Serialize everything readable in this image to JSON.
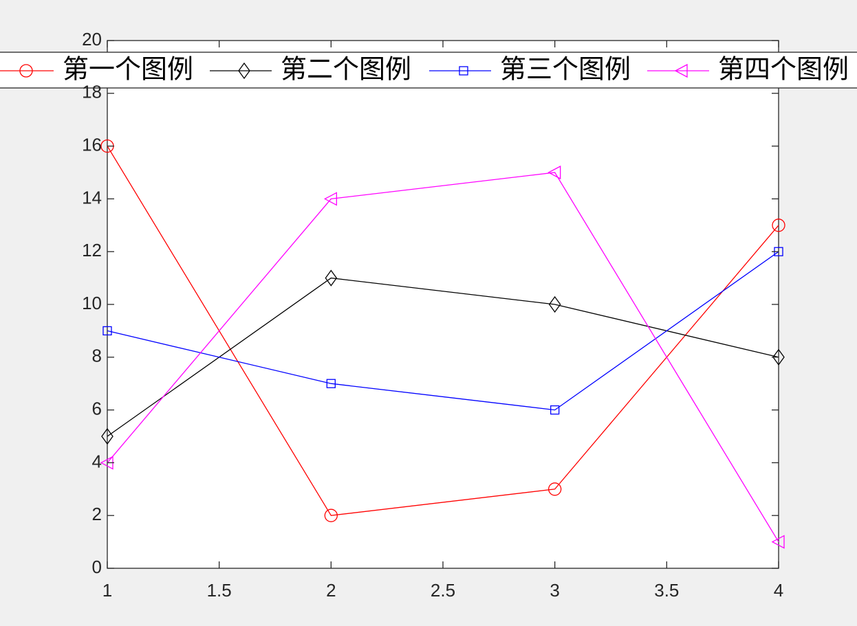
{
  "chart_data": {
    "type": "line",
    "x": [
      1,
      2,
      3,
      4
    ],
    "series": [
      {
        "name": "第一个图例",
        "color": "#ff0000",
        "marker": "circle",
        "values": [
          16,
          2,
          3,
          13
        ]
      },
      {
        "name": "第二个图例",
        "color": "#000000",
        "marker": "diamond",
        "values": [
          5,
          11,
          10,
          8
        ]
      },
      {
        "name": "第三个图例",
        "color": "#0000ff",
        "marker": "square",
        "values": [
          9,
          7,
          6,
          12
        ]
      },
      {
        "name": "第四个图例",
        "color": "#ff00ff",
        "marker": "triangle-left",
        "values": [
          4,
          14,
          15,
          1
        ]
      }
    ],
    "xlim": [
      1,
      4
    ],
    "xticks": [
      1,
      1.5,
      2,
      2.5,
      3,
      3.5,
      4
    ],
    "ylim": [
      0,
      20
    ],
    "yticks": [
      0,
      2,
      4,
      6,
      8,
      10,
      12,
      14,
      16,
      18,
      20
    ],
    "grid": false,
    "legend": "north-horizontal"
  }
}
